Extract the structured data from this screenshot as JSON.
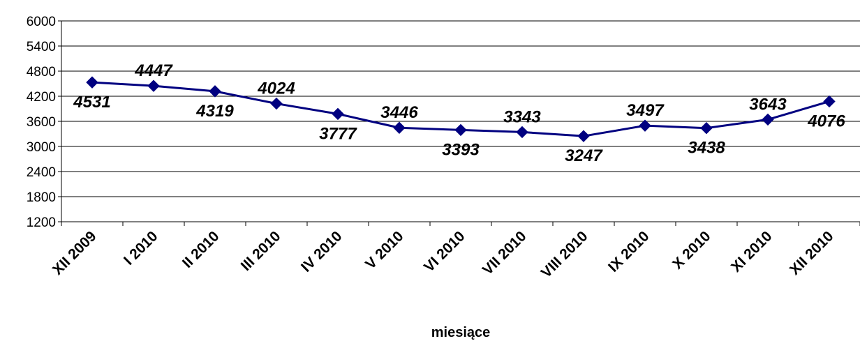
{
  "chart_data": {
    "type": "line",
    "title": "",
    "xlabel": "miesiące",
    "ylabel": "",
    "ylim": [
      1200,
      6000
    ],
    "yticks": [
      1200,
      1800,
      2400,
      3000,
      3600,
      4200,
      4800,
      5400,
      6000
    ],
    "grid": true,
    "legend": "none",
    "line_color": "#000080",
    "categories": [
      "XII 2009",
      "I 2010",
      "II 2010",
      "III 2010",
      "IV 2010",
      "V 2010",
      "VI 2010",
      "VII 2010",
      "VIII 2010",
      "IX 2010",
      "X 2010",
      "XI 2010",
      "XII 2010"
    ],
    "series": [
      {
        "values": [
          4531,
          4447,
          4319,
          4024,
          3777,
          3446,
          3393,
          3343,
          3247,
          3497,
          3438,
          3643,
          4076
        ],
        "labels": [
          "4531",
          "4447",
          "4319",
          "4024",
          "3777",
          "3446",
          "3393",
          "3343",
          "3247",
          "3497",
          "3438",
          "3643",
          "4076"
        ]
      }
    ]
  }
}
